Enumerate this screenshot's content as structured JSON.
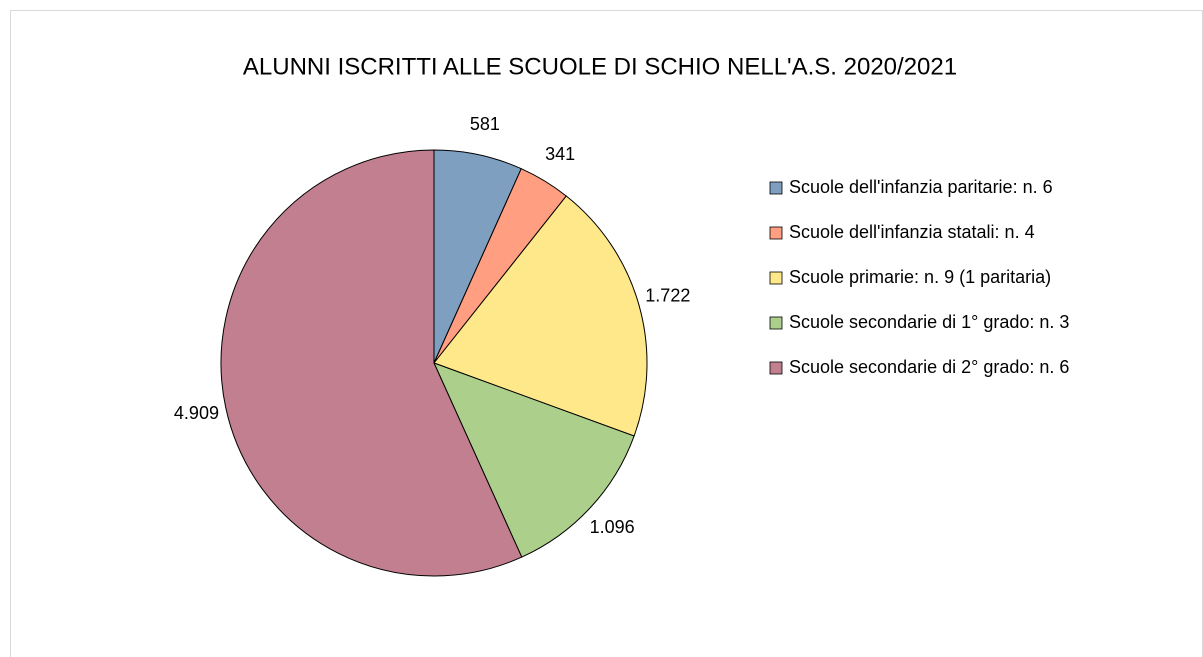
{
  "chart_data": {
    "type": "pie",
    "title": "ALUNNI ISCRITTI ALLE SCUOLE DI SCHIO NELL'A.S. 2020/2021",
    "categories": [
      "Scuole dell'infanzia paritarie: n. 6",
      "Scuole dell'infanzia statali: n. 4",
      "Scuole primarie: n. 9 (1 paritaria)",
      "Scuole secondarie di 1° grado: n. 3",
      "Scuole secondarie di 2° grado: n. 6"
    ],
    "values": [
      581,
      341,
      1722,
      1096,
      4909
    ],
    "value_labels": [
      "581",
      "341",
      "1.722",
      "1.096",
      "4.909"
    ],
    "colors": [
      "#7f9fc1",
      "#ff9e80",
      "#ffe88a",
      "#acd08c",
      "#c17f8f"
    ],
    "legend": "right"
  }
}
